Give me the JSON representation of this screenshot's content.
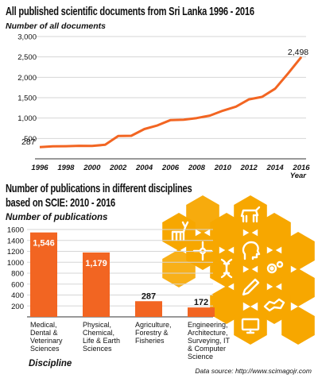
{
  "colors": {
    "accent": "#f26522",
    "honeycomb": "#f7a700",
    "grid": "#d6d6d6",
    "text": "#111111"
  },
  "line_chart": {
    "title": "All published scientific documents from Sri Lanka 1996 - 2016",
    "ylabel": "Number of all documents",
    "xlabel": "Year",
    "y_ticks": [
      "500",
      "1,000",
      "1,500",
      "2,000",
      "2,500",
      "3,000"
    ],
    "x_ticks": [
      "1996",
      "1998",
      "2000",
      "2002",
      "2004",
      "2006",
      "2008",
      "2010",
      "2012",
      "2014",
      "2016"
    ],
    "start_label": "287",
    "end_label": "2,498"
  },
  "bar_chart": {
    "title_line1": "Number of publications in different disciplines",
    "title_line2": "based on SCIE: 2010 - 2016",
    "ylabel": "Number of publications",
    "xlabel": "Discipline",
    "y_ticks": [
      "200",
      "400",
      "600",
      "800",
      "1000",
      "1200",
      "1400",
      "1600"
    ],
    "value_labels": [
      "1,546",
      "1,179",
      "287",
      "172"
    ],
    "categories": [
      [
        "Medical,",
        "Dental &",
        "Veterinary",
        "Sciences"
      ],
      [
        "Physical,",
        "Chemical,",
        "Life & Earth",
        "Sciences"
      ],
      [
        "Agriculture,",
        "Forestry &",
        "Fisheries"
      ],
      [
        "Engineering,",
        "Architecture,",
        "Surveying, IT",
        "& Computer",
        "Science"
      ]
    ]
  },
  "source": "Data source: http://www.scimagojr.com",
  "icons": [
    "flask-icon",
    "deer-icon",
    "cow-icon",
    "network-icon",
    "dna-icon",
    "head-icon",
    "gears-icon",
    "pen-icon",
    "computer-icon",
    "map-icon"
  ],
  "chart_data": [
    {
      "type": "line",
      "title": "All published scientific documents from Sri Lanka 1996 - 2016",
      "xlabel": "Year",
      "ylabel": "Number of all documents",
      "x": [
        1996,
        1997,
        1998,
        1999,
        2000,
        2001,
        2002,
        2003,
        2004,
        2005,
        2006,
        2007,
        2008,
        2009,
        2010,
        2011,
        2012,
        2013,
        2014,
        2015,
        2016
      ],
      "values": [
        287,
        305,
        310,
        320,
        315,
        345,
        560,
        565,
        730,
        820,
        950,
        960,
        1000,
        1060,
        1180,
        1280,
        1460,
        1520,
        1720,
        2100,
        2498
      ],
      "xlim": [
        1996,
        2016
      ],
      "ylim": [
        0,
        3000
      ],
      "grid": true
    },
    {
      "type": "bar",
      "title": "Number of publications in different disciplines based on SCIE: 2010 - 2016",
      "xlabel": "Discipline",
      "ylabel": "Number of publications",
      "categories": [
        "Medical, Dental & Veterinary Sciences",
        "Physical, Chemical, Life & Earth Sciences",
        "Agriculture, Forestry & Fisheries",
        "Engineering, Architecture, Surveying, IT & Computer Science"
      ],
      "values": [
        1546,
        1179,
        287,
        172
      ],
      "ylim": [
        0,
        1600
      ],
      "grid": true
    }
  ]
}
